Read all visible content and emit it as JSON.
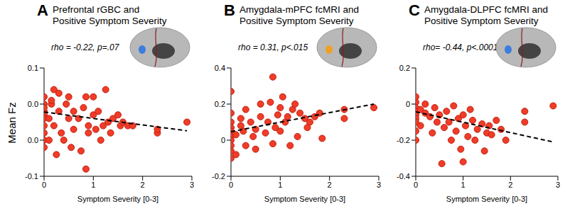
{
  "chart_data": [
    {
      "type": "scatter",
      "panel": "A",
      "title": [
        "Prefrontal rGBC and",
        "Positive Symptom Severity"
      ],
      "annotation": "rho = -0.22, p=.07",
      "x_label": "Symptom Severity [0-3]",
      "y_label": "Mean Fz",
      "color": "#f03c28",
      "marker": "circle",
      "xlim": [
        0,
        3
      ],
      "xticks": [
        0,
        1,
        2,
        3
      ],
      "ylim": [
        -0.05,
        0.1
      ],
      "yticks": [
        {
          "value": 0.1,
          "label": "0.1"
        },
        {
          "value": 0.05,
          "label": "0.0"
        },
        {
          "value": 0,
          "label": "0.0"
        },
        {
          "value": -0.05,
          "label": "-0.1"
        }
      ],
      "points": [
        [
          0,
          0.04
        ],
        [
          0,
          0.035
        ],
        [
          0,
          0.03
        ],
        [
          0,
          0.02
        ],
        [
          0,
          0.01
        ],
        [
          0,
          0
        ],
        [
          0,
          -0.01
        ],
        [
          0,
          0.05
        ],
        [
          0,
          0.06
        ],
        [
          0,
          0.045
        ],
        [
          0.1,
          0.03
        ],
        [
          0.1,
          0
        ],
        [
          0.15,
          0.05
        ],
        [
          0.15,
          0.055
        ],
        [
          0.2,
          0.07
        ],
        [
          0.2,
          0.02
        ],
        [
          0.25,
          -0.02
        ],
        [
          0.3,
          0.065
        ],
        [
          0.3,
          0.04
        ],
        [
          0.35,
          0.01
        ],
        [
          0.4,
          0
        ],
        [
          0.45,
          0.05
        ],
        [
          0.5,
          0.06
        ],
        [
          0.5,
          0.03
        ],
        [
          0.55,
          -0.01
        ],
        [
          0.6,
          0.04
        ],
        [
          0.6,
          0.015
        ],
        [
          0.7,
          0.03
        ],
        [
          0.75,
          -0.015
        ],
        [
          0.8,
          0.045
        ],
        [
          0.85,
          0.06
        ],
        [
          0.85,
          -0.04
        ],
        [
          0.9,
          0.02
        ],
        [
          0.9,
          0.01
        ],
        [
          1.0,
          0.06
        ],
        [
          1.0,
          0.035
        ],
        [
          1.05,
          0.015
        ],
        [
          1.1,
          0.04
        ],
        [
          1.15,
          0
        ],
        [
          1.2,
          0.02
        ],
        [
          1.25,
          0.07
        ],
        [
          1.3,
          0.025
        ],
        [
          1.35,
          0.01
        ],
        [
          1.4,
          0.03
        ],
        [
          1.5,
          0.035
        ],
        [
          1.55,
          0.02
        ],
        [
          1.6,
          0.025
        ],
        [
          1.7,
          0.02
        ],
        [
          1.8,
          0.02
        ],
        [
          2.3,
          0.01
        ],
        [
          2.3,
          0.015
        ],
        [
          2.9,
          0.025
        ]
      ],
      "fit_line": {
        "x": [
          0,
          2.9
        ],
        "y": [
          0.039,
          0.013
        ],
        "line_style": "dashed",
        "color": "#000000"
      }
    },
    {
      "type": "scatter",
      "panel": "B",
      "title": [
        "Amygdala-mPFC fcMRI and",
        "Positive Symptom Severity"
      ],
      "annotation": "rho = 0.31, p<.015",
      "x_label": "Symptom Severity [0-3]",
      "color": "#f03c28",
      "marker": "circle",
      "xlim": [
        0,
        3
      ],
      "xticks": [
        0,
        1,
        2,
        3
      ],
      "ylim": [
        -0.2,
        0.4
      ],
      "yticks": [
        0.4,
        0.2,
        0,
        -0.2
      ],
      "points": [
        [
          0,
          0.1
        ],
        [
          0,
          0.07
        ],
        [
          0,
          0.05
        ],
        [
          0,
          0.02
        ],
        [
          0,
          0
        ],
        [
          0,
          -0.03
        ],
        [
          0,
          -0.06
        ],
        [
          0,
          -0.1
        ],
        [
          0,
          0.15
        ],
        [
          0,
          0.27
        ],
        [
          0.1,
          0.03
        ],
        [
          0.1,
          -0.08
        ],
        [
          0.2,
          0.08
        ],
        [
          0.2,
          0.12
        ],
        [
          0.25,
          0.05
        ],
        [
          0.3,
          -0.03
        ],
        [
          0.3,
          0.17
        ],
        [
          0.4,
          0.1
        ],
        [
          0.45,
          0.02
        ],
        [
          0.5,
          0.06
        ],
        [
          0.5,
          -0.05
        ],
        [
          0.6,
          0.13
        ],
        [
          0.6,
          0.2
        ],
        [
          0.7,
          0.04
        ],
        [
          0.75,
          0.1
        ],
        [
          0.8,
          0.21
        ],
        [
          0.85,
          0.35
        ],
        [
          0.85,
          -0.02
        ],
        [
          0.9,
          0.07
        ],
        [
          0.95,
          0.14
        ],
        [
          1.0,
          0.18
        ],
        [
          1.0,
          0.05
        ],
        [
          1.05,
          0.24
        ],
        [
          1.1,
          0.1
        ],
        [
          1.15,
          0.13
        ],
        [
          1.2,
          -0.03
        ],
        [
          1.25,
          0.17
        ],
        [
          1.3,
          0.2
        ],
        [
          1.35,
          0.02
        ],
        [
          1.4,
          0.15
        ],
        [
          1.5,
          0.12
        ],
        [
          1.55,
          0.07
        ],
        [
          1.6,
          0.1
        ],
        [
          1.7,
          0.13
        ],
        [
          1.8,
          0.15
        ],
        [
          1.85,
          0.01
        ],
        [
          2.3,
          0.12
        ],
        [
          2.3,
          0.17
        ],
        [
          2.9,
          0.18
        ]
      ],
      "fit_line": {
        "x": [
          0,
          2.9
        ],
        "y": [
          0.047,
          0.2
        ],
        "line_style": "dashed",
        "color": "#000000"
      }
    },
    {
      "type": "scatter",
      "panel": "C",
      "title": [
        "Amygdala-DLPFC fcMRI and",
        "Positive Symptom Severity"
      ],
      "annotation": "rho= -0.44, p<.0001",
      "x_label": "Symptom Severity [0-3]",
      "color": "#f03c28",
      "marker": "circle",
      "xlim": [
        0,
        3
      ],
      "xticks": [
        0,
        1,
        2,
        3
      ],
      "ylim": [
        -0.4,
        0.2
      ],
      "yticks": [
        0.2,
        0,
        -0.2,
        -0.4
      ],
      "points": [
        [
          0,
          0.01
        ],
        [
          0,
          -0.02
        ],
        [
          0,
          -0.04
        ],
        [
          0,
          -0.06
        ],
        [
          0,
          -0.08
        ],
        [
          0,
          -0.1
        ],
        [
          0,
          0.04
        ],
        [
          0,
          -0.15
        ],
        [
          0,
          -0.2
        ],
        [
          0.1,
          -0.03
        ],
        [
          0.1,
          -0.12
        ],
        [
          0.2,
          -0.05
        ],
        [
          0.2,
          0
        ],
        [
          0.3,
          -0.07
        ],
        [
          0.35,
          -0.16
        ],
        [
          0.4,
          -0.02
        ],
        [
          0.45,
          -0.1
        ],
        [
          0.5,
          -0.06
        ],
        [
          0.55,
          -0.33
        ],
        [
          0.6,
          -0.13
        ],
        [
          0.65,
          -0.04
        ],
        [
          0.7,
          -0.1
        ],
        [
          0.75,
          -0.2
        ],
        [
          0.8,
          -0.01
        ],
        [
          0.85,
          -0.15
        ],
        [
          0.9,
          -0.08
        ],
        [
          0.95,
          -0.25
        ],
        [
          1.0,
          -0.32
        ],
        [
          1.0,
          -0.06
        ],
        [
          1.05,
          -0.12
        ],
        [
          1.1,
          -0.18
        ],
        [
          1.15,
          -0.03
        ],
        [
          1.2,
          -0.09
        ],
        [
          1.25,
          -0.2
        ],
        [
          1.3,
          -0.14
        ],
        [
          1.4,
          -0.11
        ],
        [
          1.45,
          -0.26
        ],
        [
          1.5,
          -0.16
        ],
        [
          1.55,
          -0.12
        ],
        [
          1.6,
          -0.17
        ],
        [
          1.7,
          -0.09
        ],
        [
          1.8,
          -0.14
        ],
        [
          1.9,
          -0.2
        ],
        [
          2.3,
          -0.04
        ],
        [
          2.3,
          -0.1
        ],
        [
          2.9,
          -0.01
        ]
      ],
      "fit_line": {
        "x": [
          0,
          2.9
        ],
        "y": [
          -0.043,
          -0.21
        ],
        "line_style": "dashed",
        "color": "#000000"
      }
    }
  ]
}
